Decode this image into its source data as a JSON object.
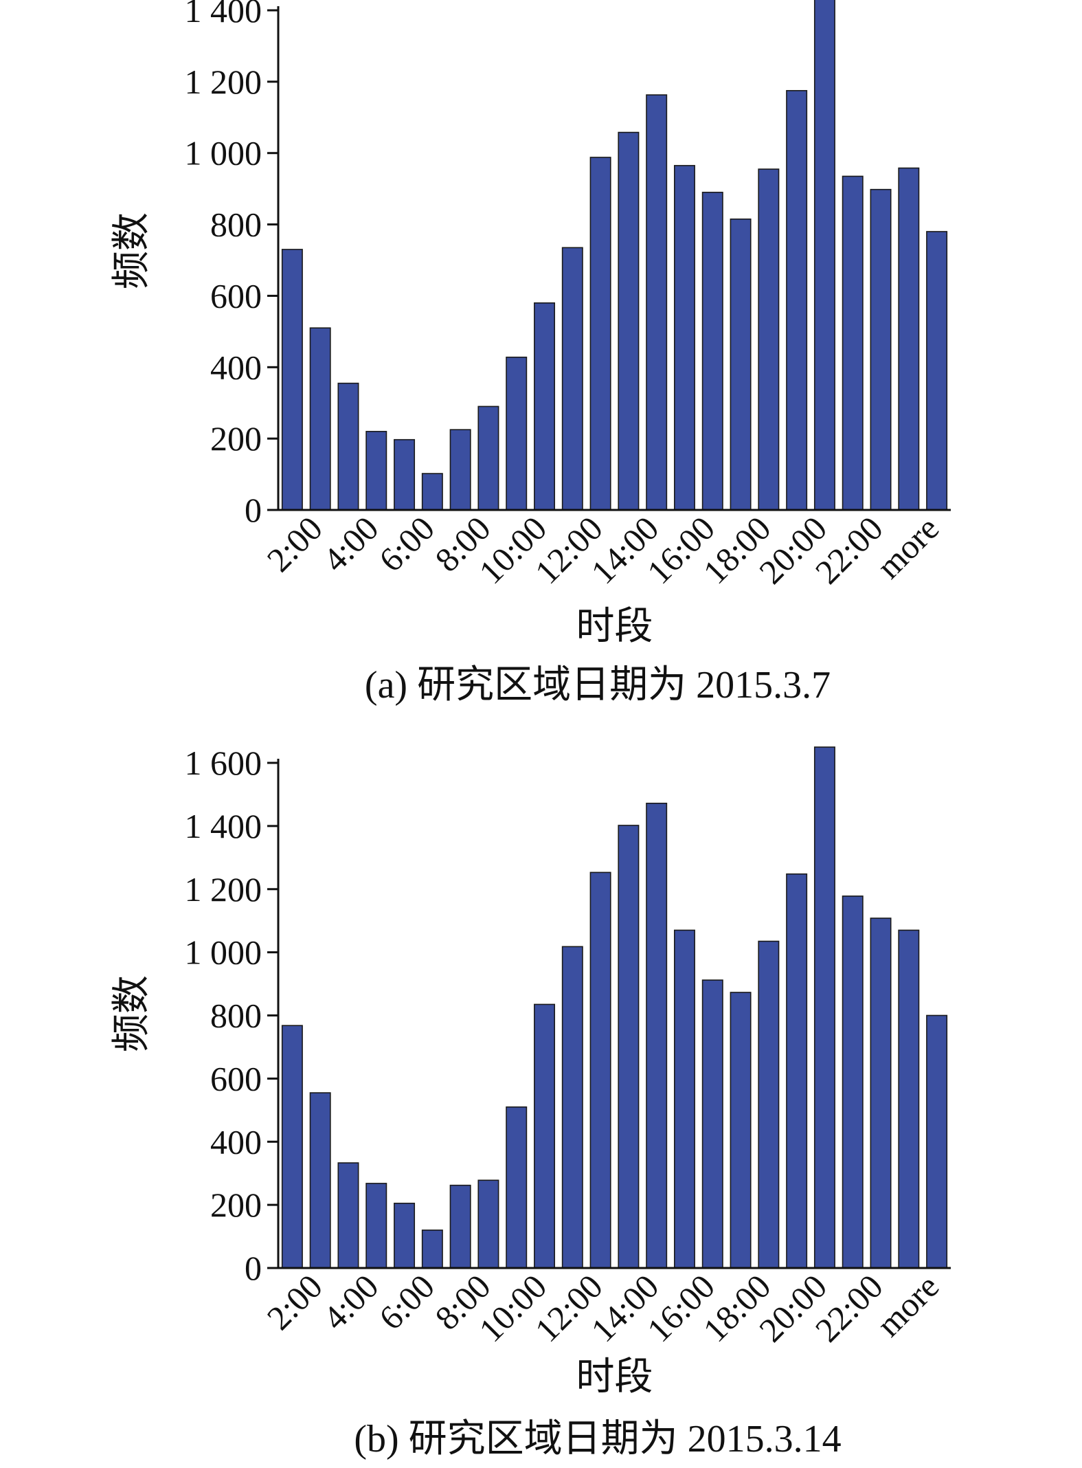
{
  "chart_data": [
    {
      "type": "bar",
      "caption": "(a) 研究区域日期为 2015.3.7",
      "xlabel": "时段",
      "ylabel": "频数",
      "ylim": [
        0,
        1400
      ],
      "yticks": [
        0,
        200,
        400,
        600,
        800,
        1000,
        1200,
        1400
      ],
      "ytick_labels": [
        "0",
        "200",
        "400",
        "600",
        "800",
        "1 000",
        "1 200",
        "1 400"
      ],
      "xtick_labels": [
        "2:00",
        "4:00",
        "6:00",
        "8:00",
        "10:00",
        "12:00",
        "14:00",
        "16:00",
        "18:00",
        "20:00",
        "22:00",
        "more"
      ],
      "values": [
        730,
        510,
        355,
        220,
        197,
        102,
        225,
        290,
        428,
        580,
        735,
        988,
        1058,
        1163,
        965,
        890,
        815,
        955,
        1175,
        1435,
        935,
        898,
        958,
        780
      ],
      "bar_color": "#3b4fa0",
      "grid": false
    },
    {
      "type": "bar",
      "caption": "(b) 研究区域日期为 2015.3.14",
      "xlabel": "时段",
      "ylabel": "频数",
      "ylim": [
        0,
        1600
      ],
      "yticks": [
        0,
        200,
        400,
        600,
        800,
        1000,
        1200,
        1400,
        1600
      ],
      "ytick_labels": [
        "0",
        "200",
        "400",
        "600",
        "800",
        "1 000",
        "1 200",
        "1 400",
        "1 600"
      ],
      "xtick_labels": [
        "2:00",
        "4:00",
        "6:00",
        "8:00",
        "10:00",
        "12:00",
        "14:00",
        "16:00",
        "18:00",
        "20:00",
        "22:00",
        "more"
      ],
      "values": [
        768,
        555,
        333,
        268,
        205,
        120,
        262,
        278,
        510,
        835,
        1018,
        1253,
        1402,
        1472,
        1070,
        912,
        873,
        1035,
        1248,
        1650,
        1178,
        1108,
        1070,
        800
      ],
      "bar_color": "#3b4fa0",
      "grid": false
    }
  ]
}
